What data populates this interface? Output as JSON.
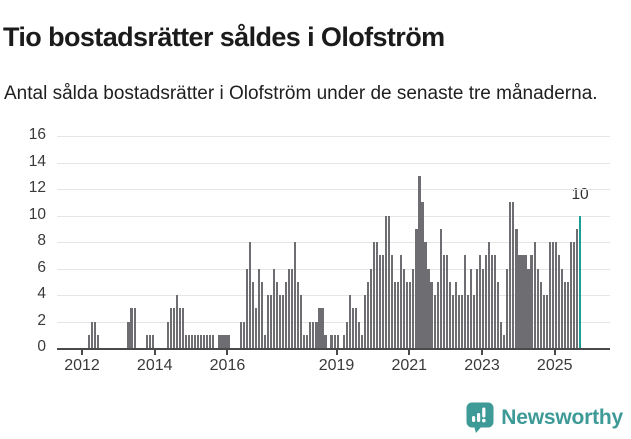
{
  "header": {
    "title": "Tio bostadsrätter såldes i Olofström",
    "subtitle": "Antal sålda bostadsrätter i Olofström under de senaste tre månaderna."
  },
  "chart_data": {
    "type": "bar",
    "title": "Tio bostadsrätter såldes i Olofström",
    "subtitle": "Antal sålda bostadsrätter i Olofström under de senaste tre månaderna.",
    "frequency": "monthly",
    "x_start": "2012-01",
    "x_end": "2025-09",
    "monthly_values": {
      "2012": [
        0,
        0,
        1,
        2,
        2,
        1,
        0,
        0,
        0,
        0,
        0,
        0
      ],
      "2013": [
        0,
        0,
        0,
        2,
        3,
        3,
        0,
        0,
        0,
        1,
        1,
        1
      ],
      "2014": [
        0,
        0,
        0,
        0,
        2,
        3,
        3,
        4,
        3,
        3,
        1,
        1
      ],
      "2015": [
        1,
        1,
        1,
        1,
        1,
        1,
        1,
        1,
        0,
        1,
        1,
        1
      ],
      "2016": [
        1,
        0,
        0,
        0,
        2,
        2,
        6,
        8,
        5,
        3,
        6,
        5
      ],
      "2017": [
        1,
        4,
        4,
        6,
        5,
        4,
        4,
        5,
        6,
        6,
        8,
        5
      ],
      "2018": [
        4,
        1,
        1,
        2,
        2,
        2,
        3,
        3,
        1,
        0,
        1,
        1
      ],
      "2019": [
        1,
        0,
        1,
        2,
        4,
        3,
        3,
        2,
        1,
        4,
        5,
        6
      ],
      "2020": [
        8,
        8,
        7,
        7,
        10,
        10,
        7,
        5,
        5,
        7,
        6,
        5
      ],
      "2021": [
        5,
        6,
        9,
        13,
        11,
        8,
        6,
        5,
        4,
        5,
        9,
        7
      ],
      "2022": [
        7,
        5,
        4,
        5,
        4,
        4,
        7,
        4,
        6,
        4,
        6,
        7
      ],
      "2023": [
        6,
        7,
        8,
        7,
        7,
        5,
        2,
        1,
        6,
        11,
        11,
        9
      ],
      "2024": [
        7,
        7,
        7,
        6,
        7,
        8,
        6,
        5,
        4,
        4,
        8,
        8
      ],
      "2025": [
        8,
        7,
        6,
        5,
        5,
        8,
        8,
        9,
        10
      ]
    },
    "highlight_last_point": {
      "month": "2025-09",
      "value": 10
    },
    "annotation": {
      "text": "10"
    },
    "ylim": [
      0,
      16
    ],
    "yticks": [
      0,
      2,
      4,
      6,
      8,
      10,
      12,
      14,
      16
    ],
    "xticks": [
      2012,
      2014,
      2016,
      2019,
      2021,
      2023,
      2025
    ],
    "grid": "horizontal",
    "legend": "none",
    "bar_color": "#6d6d72",
    "highlight_color": "#1b9e96",
    "grid_color": "#e5e5e5",
    "axis_color": "#4a4a4a",
    "label_color": "#3a3a3a"
  },
  "footer": {
    "brand": "Newsworthy",
    "brand_color": "#3d9a96"
  }
}
